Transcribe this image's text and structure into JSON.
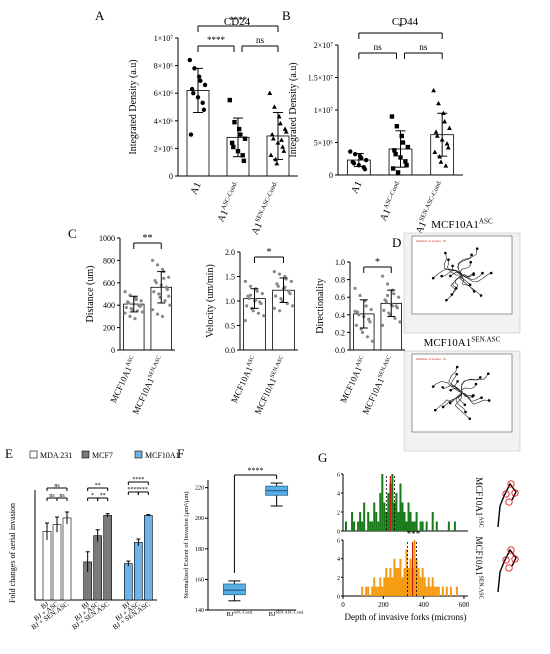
{
  "chart_data": [
    {
      "panel": "A",
      "type": "bar",
      "title": "CD24",
      "ylabel": "Integrated Density (a.u)",
      "ylim": [
        0,
        10000000
      ],
      "ytick_labels": [
        "0",
        "2×10⁶",
        "4×10⁶",
        "6×10⁶",
        "8×10⁶",
        "1×10⁷"
      ],
      "ytick_values": [
        0,
        2000000,
        4000000,
        6000000,
        8000000,
        10000000
      ],
      "categories": [
        "A1",
        "A1ASC-Cond.",
        "A1SEN.ASC-Cond."
      ],
      "cat_main": [
        "A1",
        "A1",
        "A1"
      ],
      "cat_sup": [
        "",
        "ASC-Cond.",
        "SEN.ASC-Cond."
      ],
      "values": [
        6200000,
        2800000,
        2900000
      ],
      "error": [
        1600000,
        1400000,
        1700000
      ],
      "markers": [
        "circle",
        "square",
        "triangle"
      ],
      "points": [
        [
          8400000,
          7800000,
          7200000,
          6900000,
          6600000,
          6300000,
          6000000,
          5700000,
          5300000,
          4800000,
          3000000
        ],
        [
          5500000,
          3900000,
          3400000,
          3000000,
          2700000,
          2400000,
          2100000,
          1800000,
          1500000,
          1100000
        ],
        [
          6000000,
          5000000,
          4300000,
          3800000,
          3400000,
          3000000,
          2700000,
          2400000,
          2100000,
          1800000,
          1500000,
          1200000,
          900000,
          2600000,
          3200000
        ]
      ],
      "significance": [
        {
          "from": 0,
          "to": 2,
          "label": "****"
        },
        {
          "from": 0,
          "to": 1,
          "label": "****"
        },
        {
          "from": 1,
          "to": 2,
          "label": "ns"
        }
      ]
    },
    {
      "panel": "B",
      "type": "bar",
      "title": "CD44",
      "ylabel": "Integrated Density (a.u)",
      "ylim": [
        0,
        20000000
      ],
      "ytick_labels": [
        "0",
        "5×10⁶",
        "1×10⁷",
        "1.5×10⁷",
        "2×10⁷"
      ],
      "ytick_values": [
        0,
        5000000,
        10000000,
        15000000,
        20000000
      ],
      "categories": [
        "A1",
        "A1ASC-Cond.",
        "A1SEN.ASC-Cond."
      ],
      "cat_main": [
        "A1",
        "A1",
        "A1"
      ],
      "cat_sup": [
        "",
        "ASC-Cond.",
        "SEN.ASC-Cond."
      ],
      "values": [
        2300000,
        4000000,
        6200000
      ],
      "error": [
        1000000,
        2800000,
        3300000
      ],
      "markers": [
        "circle",
        "square",
        "triangle"
      ],
      "points": [
        [
          3600000,
          3200000,
          2900000,
          2600000,
          2300000,
          2000000,
          1800000,
          1500000,
          1200000,
          900000
        ],
        [
          9000000,
          7500000,
          6000000,
          5000000,
          4300000,
          3800000,
          3200000,
          2700000,
          2100000,
          1500000,
          1000000,
          400000
        ],
        [
          13000000,
          11000000,
          9500000,
          8200000,
          7200000,
          6600000,
          6000000,
          5400000,
          4800000,
          4200000,
          3500000,
          2800000,
          2000000,
          1400000
        ]
      ],
      "significance": [
        {
          "from": 0,
          "to": 2,
          "label": "*"
        },
        {
          "from": 0,
          "to": 1,
          "label": "ns"
        },
        {
          "from": 1,
          "to": 2,
          "label": "ns"
        }
      ]
    },
    {
      "panel": "C",
      "type": "bar",
      "subplots": [
        {
          "ylabel": "Distance (um)",
          "ylim": [
            0,
            1000
          ],
          "ytick_values": [
            0,
            200,
            400,
            600,
            800,
            1000
          ],
          "ytick_labels": [
            "0",
            "200",
            "400",
            "600",
            "800",
            "1000"
          ],
          "categories": [
            "MCF10A1ASC",
            "MCF10A1SEN.ASC"
          ],
          "values": [
            410,
            560
          ],
          "error": [
            70,
            140
          ],
          "points": [
            [
              520,
              490,
              470,
              450,
              440,
              430,
              420,
              410,
              400,
              390,
              380,
              370,
              360,
              350,
              340,
              330,
              300,
              280,
              460,
              400
            ],
            [
              800,
              760,
              720,
              700,
              650,
              620,
              600,
              580,
              560,
              540,
              520,
              500,
              470,
              440,
              400,
              360,
              320,
              300,
              640,
              480
            ]
          ],
          "significance": "**"
        },
        {
          "ylabel": "Velocity (um/min)",
          "ylim": [
            0,
            2.0
          ],
          "ytick_values": [
            0,
            0.5,
            1.0,
            1.5,
            2.0
          ],
          "ytick_labels": [
            "0.0",
            "0.5",
            "1.0",
            "1.5",
            "2.0"
          ],
          "categories": [
            "MCF10A1ASC",
            "MCF10A1SEN.ASC"
          ],
          "values": [
            1.05,
            1.22
          ],
          "error": [
            0.2,
            0.25
          ],
          "points": [
            [
              1.4,
              1.3,
              1.25,
              1.2,
              1.15,
              1.1,
              1.05,
              1.0,
              0.98,
              0.95,
              0.9,
              0.85,
              0.8,
              0.75,
              0.7,
              0.6,
              1.12,
              1.02
            ],
            [
              1.6,
              1.55,
              1.5,
              1.45,
              1.4,
              1.35,
              1.3,
              1.25,
              1.2,
              1.15,
              1.1,
              1.05,
              1.0,
              0.95,
              0.9,
              0.85,
              0.8,
              1.28
            ]
          ],
          "significance": "*"
        },
        {
          "ylabel": "Directionality",
          "ylim": [
            0,
            1.0
          ],
          "ytick_values": [
            0,
            0.2,
            0.4,
            0.6,
            0.8,
            1.0
          ],
          "ytick_labels": [
            "0.0",
            "0.2",
            "0.4",
            "0.6",
            "0.8",
            "1.0"
          ],
          "categories": [
            "MCF10A1ASC",
            "MCF10A1SEN.ASC"
          ],
          "values": [
            0.41,
            0.53
          ],
          "error": [
            0.16,
            0.15
          ],
          "points": [
            [
              0.7,
              0.62,
              0.56,
              0.5,
              0.46,
              0.43,
              0.4,
              0.38,
              0.35,
              0.32,
              0.28,
              0.24,
              0.2,
              0.15,
              0.1,
              0.44
            ],
            [
              0.84,
              0.75,
              0.68,
              0.64,
              0.6,
              0.57,
              0.55,
              0.52,
              0.5,
              0.48,
              0.45,
              0.42,
              0.4,
              0.36,
              0.32,
              0.28,
              0.62,
              0.5
            ]
          ],
          "significance": "*"
        }
      ]
    },
    {
      "panel": "D",
      "type": "scatter",
      "subplots": [
        {
          "title_main": "MCF10A1",
          "title_sup": "ASC",
          "inner_label": "Number of tracks: 19"
        },
        {
          "title_main": "MCF10A1",
          "title_sup": "SEN.ASC",
          "inner_label": "Number of tracks: 19"
        }
      ]
    },
    {
      "panel": "E",
      "type": "bar",
      "ylabel": "Fold changes of aerial invasion",
      "ylim": [
        0,
        1.3
      ],
      "legend": [
        {
          "name": "MDA 231",
          "color": "#ffffff"
        },
        {
          "name": "MCF7",
          "color": "#7a7a7a"
        },
        {
          "name": "MCF10A1",
          "color": "#6bb3e8"
        }
      ],
      "legend_position": "top",
      "categories": [
        "BJ",
        "BJ + ASC",
        "BJ + SEN.ASC"
      ],
      "series": [
        {
          "name": "MDA 231",
          "values": [
            0.81,
            0.89,
            0.97
          ],
          "error": [
            0.1,
            0.09,
            0.07
          ]
        },
        {
          "name": "MCF7",
          "values": [
            0.45,
            0.76,
            1.0
          ],
          "error": [
            0.12,
            0.07,
            0.02
          ]
        },
        {
          "name": "MCF10A1",
          "values": [
            0.43,
            0.68,
            1.0
          ],
          "error": [
            0.03,
            0.04,
            0.01
          ]
        }
      ],
      "significance_labels": [
        "ns",
        "ns",
        "ns",
        "**",
        "*",
        "**",
        "****",
        "****",
        "***"
      ]
    },
    {
      "panel": "F",
      "type": "box",
      "ylabel": "Normalized Extent of Invasion (μm²/μm)",
      "ylim": [
        140,
        225
      ],
      "ytick_values": [
        140,
        160,
        180,
        200,
        220
      ],
      "ytick_labels": [
        "140",
        "160",
        "180",
        "200",
        "220"
      ],
      "categories": [
        "BJ ASC-Cond.",
        "BJ SEN.ASC-Cond."
      ],
      "cat_main": [
        "BJ",
        "BJ"
      ],
      "cat_sup": [
        "ASC-Cond.",
        "SEN.ASC-Cond."
      ],
      "boxes": [
        {
          "min": 146,
          "q1": 150,
          "median": 153,
          "q3": 157,
          "max": 159
        },
        {
          "min": 208,
          "q1": 215,
          "median": 218,
          "q3": 221,
          "max": 223
        }
      ],
      "significance": "****"
    },
    {
      "panel": "G",
      "type": "histogram",
      "xlabel": "Depth of invasive forks (microns)",
      "xlim": [
        0,
        620
      ],
      "xtick_values": [
        0,
        200,
        400,
        600
      ],
      "xtick_labels": [
        "0",
        "200",
        "400",
        "600"
      ],
      "ytick_labels": [
        "0",
        "2",
        "4",
        "6"
      ],
      "ylim": [
        0,
        6
      ],
      "bin_width": 10,
      "series": [
        {
          "name": "MCF10A1ASC",
          "label_main": "MCF10A1",
          "label_sup": "ASC",
          "color": "#1a7a1a",
          "median": 235,
          "ci": [
            215,
            255
          ],
          "counts": [
            0,
            1,
            0,
            0,
            2,
            1,
            0,
            1,
            2,
            1,
            3,
            0,
            2,
            1,
            1,
            3,
            2,
            1,
            4,
            6,
            3,
            2,
            4,
            5,
            6,
            3,
            4,
            2,
            5,
            3,
            2,
            1,
            3,
            2,
            1,
            1,
            2,
            0,
            1,
            1,
            0,
            1,
            0,
            0,
            2,
            0,
            1,
            0,
            0,
            0,
            0,
            0,
            1,
            0,
            0,
            1,
            0,
            0,
            0,
            0,
            0,
            0
          ]
        },
        {
          "name": "MCF10A1SEN.ASC",
          "label_main": "MCF10A1",
          "label_sup": "SEN.ASC",
          "color": "#f39a13",
          "median": 345,
          "ci": [
            320,
            365
          ],
          "counts": [
            0,
            0,
            0,
            0,
            0,
            0,
            0,
            0,
            0,
            1,
            0,
            1,
            1,
            0,
            1,
            2,
            1,
            1,
            2,
            1,
            2,
            3,
            2,
            3,
            2,
            4,
            3,
            3,
            4,
            2,
            3,
            5,
            3,
            4,
            3,
            6,
            4,
            3,
            2,
            3,
            2,
            1,
            2,
            1,
            2,
            1,
            1,
            1,
            0,
            1,
            0,
            1,
            0,
            1,
            0,
            0,
            1,
            0,
            0,
            0,
            0,
            0
          ]
        }
      ],
      "significance": "***"
    }
  ]
}
